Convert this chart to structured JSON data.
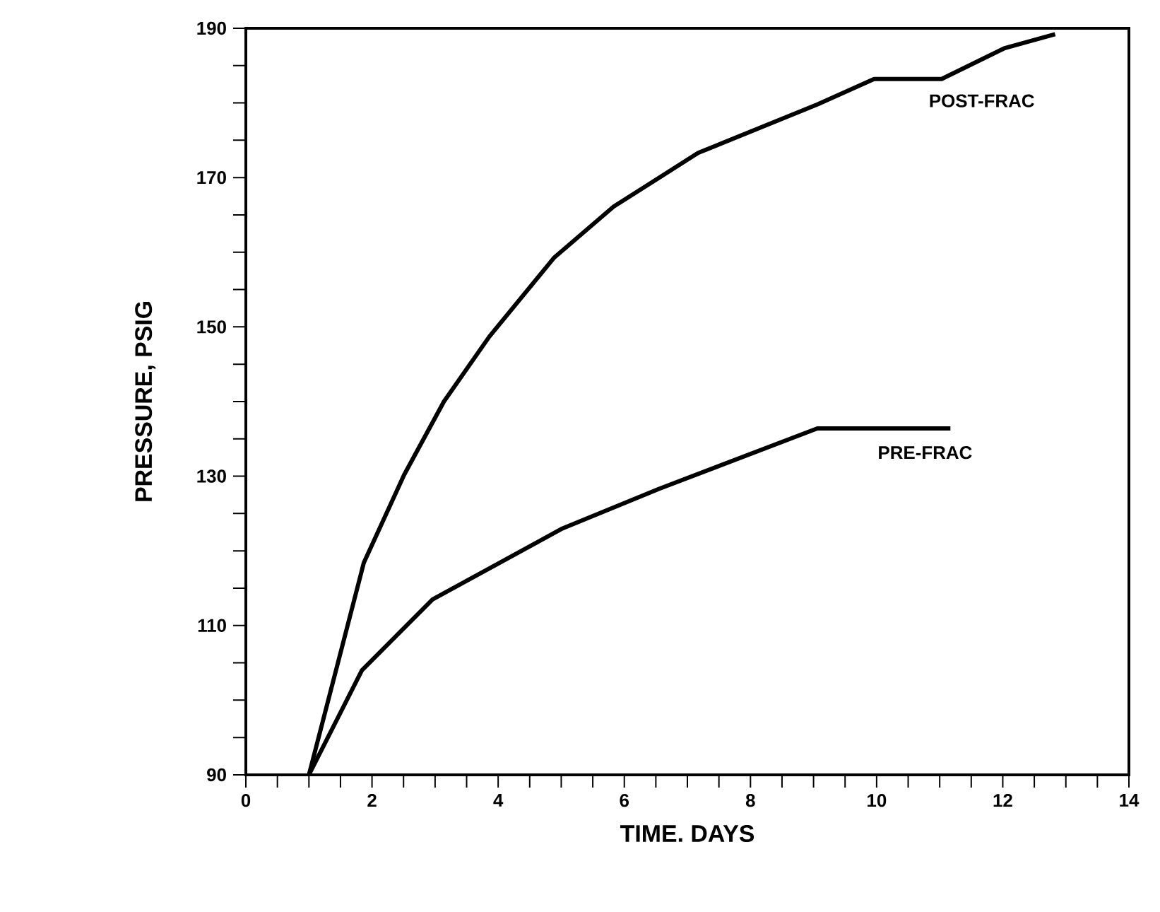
{
  "chart_data": {
    "type": "line",
    "xlabel": "TIME. DAYS",
    "ylabel": "PRESSURE, PSIG",
    "xlim": [
      0,
      14
    ],
    "ylim": [
      90,
      190
    ],
    "xticks": [
      0,
      2,
      4,
      6,
      8,
      10,
      12,
      14
    ],
    "yticks": [
      90,
      110,
      130,
      150,
      170,
      190
    ],
    "marker": "none",
    "line_style": "solid",
    "series": [
      {
        "name": "POST-FRAC",
        "color": "#000000",
        "x": [
          1,
          1.87,
          2.51,
          3.14,
          3.86,
          4.89,
          5.83,
          7.17,
          9.06,
          9.96,
          11.03,
          12.02,
          12.83
        ],
        "values": [
          90,
          118.4,
          130.2,
          140,
          148.7,
          159.3,
          166.1,
          173.3,
          179.8,
          183.2,
          183.2,
          187.3,
          189.2
        ]
      },
      {
        "name": "PRE-FRAC",
        "color": "#000000",
        "x": [
          1,
          1.84,
          2.96,
          5.02,
          6.55,
          9.06,
          11.17
        ],
        "values": [
          90,
          104,
          113.5,
          123,
          128.3,
          136.4,
          136.4
        ]
      }
    ]
  }
}
